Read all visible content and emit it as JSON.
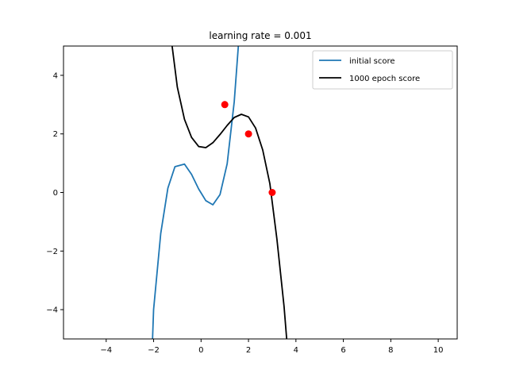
{
  "chart_data": {
    "type": "line",
    "title": "learning rate = 0.001",
    "xlabel": "",
    "ylabel": "",
    "xlim": [
      -5.8,
      10.8
    ],
    "ylim": [
      -5,
      5
    ],
    "xticks": [
      -4,
      -2,
      0,
      2,
      4,
      6,
      8,
      10
    ],
    "yticks": [
      -4,
      -2,
      0,
      2,
      4
    ],
    "grid": false,
    "legend_position": "upper right",
    "series": [
      {
        "name": "initial score",
        "color": "#1f77b4",
        "x": [
          -2.1,
          -2.0,
          -1.7,
          -1.4,
          -1.1,
          -0.7,
          -0.4,
          -0.1,
          0.2,
          0.5,
          0.8,
          1.1,
          1.4,
          1.6
        ],
        "y": [
          -6.2,
          -4.0,
          -1.4,
          0.15,
          0.88,
          0.97,
          0.62,
          0.12,
          -0.28,
          -0.42,
          -0.07,
          0.98,
          3.1,
          5.3
        ]
      },
      {
        "name": "1000 epoch score",
        "color": "#000000",
        "x": [
          -1.3,
          -1.0,
          -0.7,
          -0.4,
          -0.1,
          0.2,
          0.5,
          0.8,
          1.1,
          1.4,
          1.7,
          2.0,
          2.3,
          2.6,
          2.9,
          3.2,
          3.5,
          3.8
        ],
        "y": [
          5.5,
          3.6,
          2.5,
          1.88,
          1.57,
          1.53,
          1.7,
          1.98,
          2.29,
          2.56,
          2.67,
          2.58,
          2.2,
          1.45,
          0.3,
          -1.6,
          -3.9,
          -6.9
        ]
      }
    ],
    "points": {
      "color": "#ff0000",
      "x": [
        1,
        2,
        3
      ],
      "y": [
        3,
        2,
        0
      ]
    }
  }
}
